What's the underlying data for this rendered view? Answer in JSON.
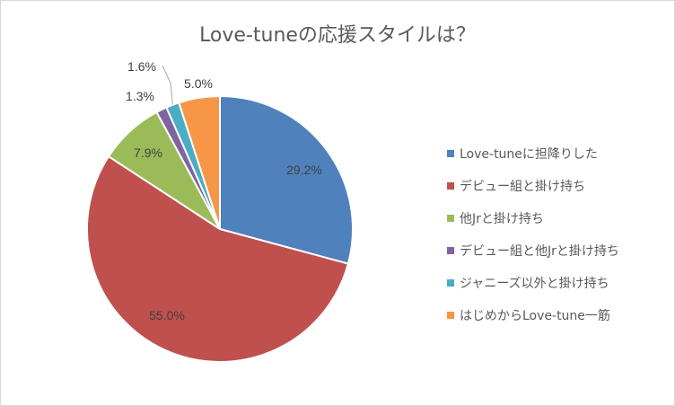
{
  "chart_data": {
    "type": "pie",
    "title": "Love-tuneの応援スタイルは？",
    "legend_position": "right",
    "slices": [
      {
        "label": "Love-tuneに担降りした",
        "value": 29.2,
        "display": "29.2%",
        "color": "#4f81bd"
      },
      {
        "label": "デビュー組と掛け持ち",
        "value": 55.0,
        "display": "55.0%",
        "color": "#c0504d"
      },
      {
        "label": "他Jrと掛け持ち",
        "value": 7.9,
        "display": "7.9%",
        "color": "#9bbb59"
      },
      {
        "label": "デビュー組と他Jrと掛け持ち",
        "value": 1.3,
        "display": "1.3%",
        "color": "#8064a2"
      },
      {
        "label": "ジャニーズ以外と掛け持ち",
        "value": 1.6,
        "display": "1.6%",
        "color": "#4bacc6"
      },
      {
        "label": "はじめからLove-tune一筋",
        "value": 5.0,
        "display": "5.0%",
        "color": "#f79646"
      }
    ]
  }
}
